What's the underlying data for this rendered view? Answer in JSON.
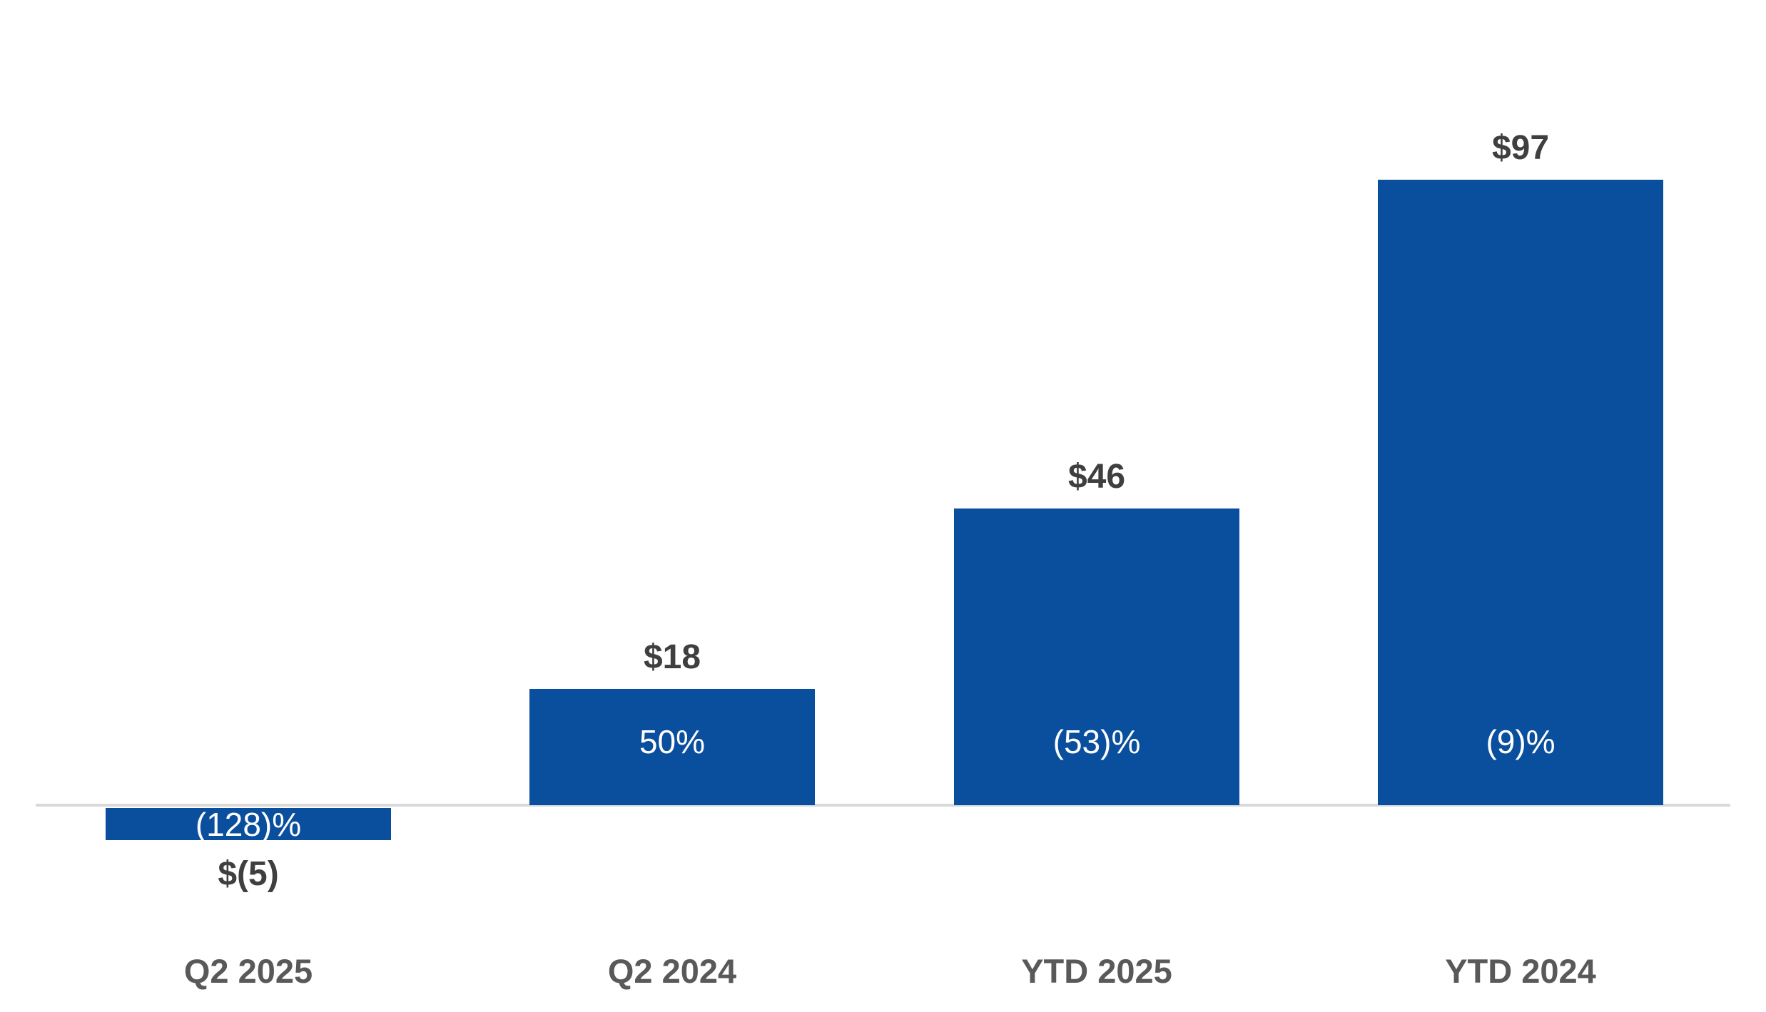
{
  "chart_data": {
    "type": "bar",
    "categories": [
      "Q2 2025",
      "Q2 2024",
      "YTD 2025",
      "YTD 2024"
    ],
    "values": [
      -5,
      18,
      46,
      97
    ],
    "value_labels": [
      "$(5)",
      "$18",
      "$46",
      "$97"
    ],
    "pct_labels": [
      "(128)%",
      "50%",
      "(53)%",
      "(9)%"
    ],
    "title": "",
    "xlabel": "",
    "ylabel": "",
    "ylim": [
      -10,
      105
    ],
    "grid": false,
    "legend": "none",
    "baseline_value": 0
  },
  "colors": {
    "bar": "#0a4f9d",
    "axis_line": "#d9d9d9",
    "value_label": "#3f3f3f",
    "category_label": "#595959",
    "pct_label": "#ffffff",
    "background": "#ffffff"
  }
}
